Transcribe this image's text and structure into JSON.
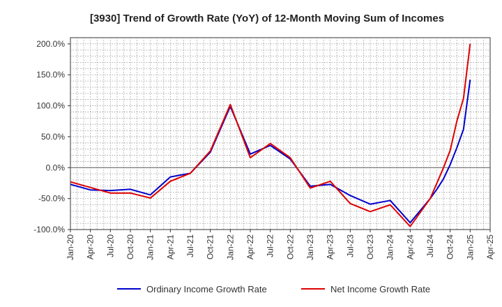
{
  "chart_data": {
    "type": "line",
    "title": "[3930]  Trend of Growth Rate (YoY) of 12-Month Moving Sum of Incomes",
    "xlabel": "",
    "ylabel": "",
    "ylim": [
      -100,
      210
    ],
    "y_ticks": [
      -100,
      -50,
      0,
      50,
      100,
      150,
      200
    ],
    "y_tick_labels": [
      "-100.0%",
      "-50.0%",
      "0.0%",
      "50.0%",
      "100.0%",
      "150.0%",
      "200.0%"
    ],
    "x_tick_labels": [
      "Jan-20",
      "Apr-20",
      "Jul-20",
      "Oct-20",
      "Jan-21",
      "Apr-21",
      "Jul-21",
      "Oct-21",
      "Jan-22",
      "Apr-22",
      "Jul-22",
      "Oct-22",
      "Jan-23",
      "Apr-23",
      "Jul-23",
      "Oct-23",
      "Jan-24",
      "Apr-24",
      "Jul-24",
      "Oct-24",
      "Jan-25",
      "Apr-25"
    ],
    "grid": true,
    "legend_position": "bottom",
    "series": [
      {
        "name": "Ordinary Income Growth Rate",
        "color": "#0000cc",
        "x": [
          "Jan-20",
          "Apr-20",
          "Jul-20",
          "Oct-20",
          "Jan-21",
          "Apr-21",
          "Jul-21",
          "Oct-21",
          "Jan-22",
          "Apr-22",
          "Jul-22",
          "Oct-22",
          "Jan-23",
          "Apr-23",
          "Jul-23",
          "Oct-23",
          "Jan-24",
          "Apr-24",
          "Jul-24",
          "Aug-24",
          "Sep-24",
          "Oct-24",
          "Nov-24",
          "Dec-24",
          "Jan-25"
        ],
        "values": [
          -27,
          -36,
          -37,
          -35,
          -44,
          -15,
          -9,
          25,
          99,
          22,
          36,
          14,
          -30,
          -27,
          -45,
          -59,
          -53,
          -89,
          -50,
          -35,
          -18,
          5,
          32,
          62,
          142
        ]
      },
      {
        "name": "Net Income Growth Rate",
        "color": "#dd0000",
        "x": [
          "Jan-20",
          "Apr-20",
          "Jul-20",
          "Oct-20",
          "Jan-21",
          "Apr-21",
          "Jul-21",
          "Oct-21",
          "Jan-22",
          "Apr-22",
          "Jul-22",
          "Oct-22",
          "Jan-23",
          "Apr-23",
          "Jul-23",
          "Oct-23",
          "Jan-24",
          "Apr-24",
          "Jul-24",
          "Aug-24",
          "Sep-24",
          "Oct-24",
          "Nov-24",
          "Dec-24",
          "Jan-25"
        ],
        "values": [
          -23,
          -32,
          -41,
          -41,
          -49,
          -22,
          -9,
          27,
          102,
          16,
          39,
          16,
          -33,
          -22,
          -58,
          -71,
          -60,
          -95,
          -50,
          -25,
          0,
          28,
          75,
          112,
          200
        ]
      }
    ]
  }
}
